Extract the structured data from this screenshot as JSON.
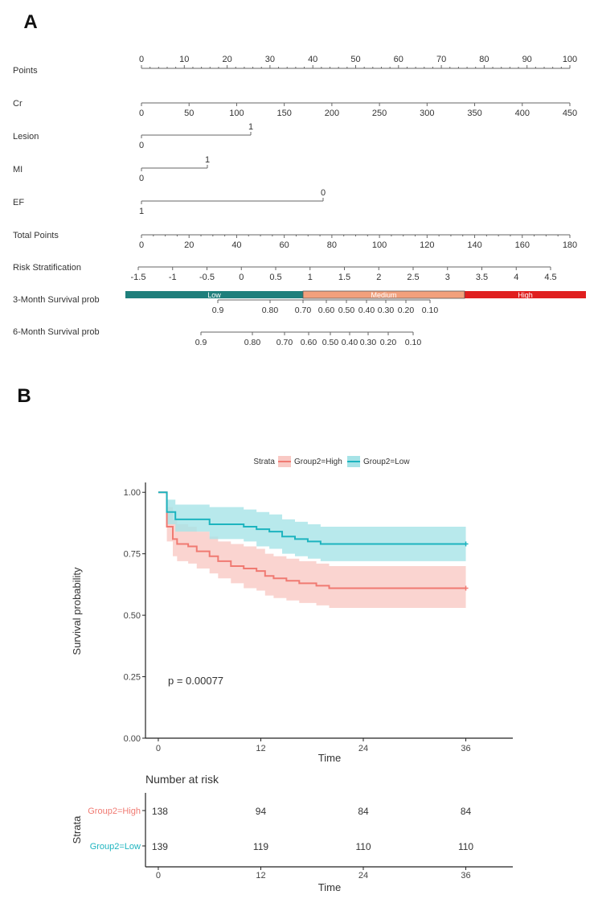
{
  "panel_a": {
    "label": "A",
    "rows": [
      {
        "label": "Points",
        "ticks": [
          "0",
          "10",
          "20",
          "30",
          "40",
          "50",
          "60",
          "70",
          "80",
          "90",
          "100"
        ]
      },
      {
        "label": "Cr",
        "ticks": [
          "0",
          "50",
          "100",
          "150",
          "200",
          "250",
          "300",
          "350",
          "400",
          "450"
        ]
      },
      {
        "label": "Lesion",
        "low": "0",
        "high": "1"
      },
      {
        "label": "MI",
        "low": "0",
        "high": "1"
      },
      {
        "label": "EF",
        "low": "1",
        "high": "0"
      },
      {
        "label": "Total Points",
        "ticks": [
          "0",
          "20",
          "40",
          "60",
          "80",
          "100",
          "120",
          "140",
          "160",
          "180"
        ]
      },
      {
        "label": "Risk Stratification",
        "ticks": [
          "-1.5",
          "-1",
          "-0.5",
          "0",
          "0.5",
          "1",
          "1.5",
          "2",
          "2.5",
          "3",
          "3.5",
          "4",
          "4.5"
        ]
      },
      {
        "label": "3-Month Survival prob",
        "ticks": [
          "0.9",
          "0.80",
          "0.70",
          "0.60",
          "0.50",
          "0.40",
          "0.30",
          "0.20",
          "0.10"
        ]
      },
      {
        "label": "6-Month Survival prob",
        "ticks": [
          "0.9",
          "0.80",
          "0.70",
          "0.60",
          "0.50",
          "0.40",
          "0.30",
          "0.20",
          "0.10"
        ]
      }
    ],
    "risk_bands": [
      {
        "label": "Low",
        "color": "#1f7f7c"
      },
      {
        "label": "Medium",
        "color": "#f2a07c"
      },
      {
        "label": "High",
        "color": "#e01f1f"
      }
    ]
  },
  "panel_b": {
    "label": "B",
    "legend_title": "Strata",
    "p_value": "p = 0.00077",
    "risk_table_title": "Number at risk",
    "risk_table_ylabel": "Strata",
    "risk_table_xlabel": "Time",
    "colors": {
      "high": "#f07a72",
      "low": "#1db4bf",
      "high_ci": "#f9c9c4",
      "low_ci": "#a6e3e7"
    }
  },
  "chart_data": {
    "type": "line",
    "title": "",
    "xlabel": "Time",
    "ylabel": "Survival probability",
    "xlim": [
      -1.5,
      41.5
    ],
    "ylim": [
      0,
      1.04
    ],
    "xticks": [
      "0",
      "12",
      "24",
      "36"
    ],
    "yticks": [
      "0.00",
      "0.25",
      "0.50",
      "0.75",
      "1.00"
    ],
    "series": [
      {
        "name": "Group2=High",
        "x": [
          0,
          1,
          1.7,
          2.2,
          3.5,
          4.5,
          6,
          7,
          8.5,
          10,
          11.5,
          12.5,
          13.5,
          15,
          16.5,
          18.5,
          20,
          36
        ],
        "y": [
          1.0,
          0.86,
          0.81,
          0.79,
          0.78,
          0.76,
          0.74,
          0.72,
          0.7,
          0.69,
          0.68,
          0.66,
          0.65,
          0.64,
          0.63,
          0.62,
          0.61,
          0.61
        ],
        "ci_upper": [
          1.0,
          0.94,
          0.89,
          0.87,
          0.86,
          0.84,
          0.82,
          0.8,
          0.79,
          0.78,
          0.77,
          0.75,
          0.74,
          0.73,
          0.72,
          0.71,
          0.7,
          0.7
        ],
        "ci_lower": [
          1.0,
          0.8,
          0.74,
          0.72,
          0.71,
          0.69,
          0.67,
          0.65,
          0.63,
          0.61,
          0.6,
          0.58,
          0.57,
          0.56,
          0.55,
          0.54,
          0.53,
          0.53
        ]
      },
      {
        "name": "Group2=Low",
        "x": [
          0,
          1,
          2,
          6,
          10,
          11.5,
          13,
          14.5,
          16,
          17.5,
          19,
          36
        ],
        "y": [
          1.0,
          0.92,
          0.89,
          0.87,
          0.86,
          0.85,
          0.84,
          0.82,
          0.81,
          0.8,
          0.79,
          0.79
        ],
        "ci_upper": [
          1.0,
          0.97,
          0.95,
          0.94,
          0.93,
          0.92,
          0.91,
          0.89,
          0.88,
          0.87,
          0.86,
          0.86
        ],
        "ci_lower": [
          1.0,
          0.87,
          0.84,
          0.81,
          0.8,
          0.78,
          0.77,
          0.75,
          0.74,
          0.73,
          0.72,
          0.72
        ]
      }
    ],
    "risk_table": {
      "times": [
        0,
        12,
        24,
        36
      ],
      "rows": [
        {
          "name": "Group2=High",
          "counts": [
            "138",
            "94",
            "84",
            "84"
          ]
        },
        {
          "name": "Group2=Low",
          "counts": [
            "139",
            "119",
            "110",
            "110"
          ]
        }
      ]
    }
  }
}
